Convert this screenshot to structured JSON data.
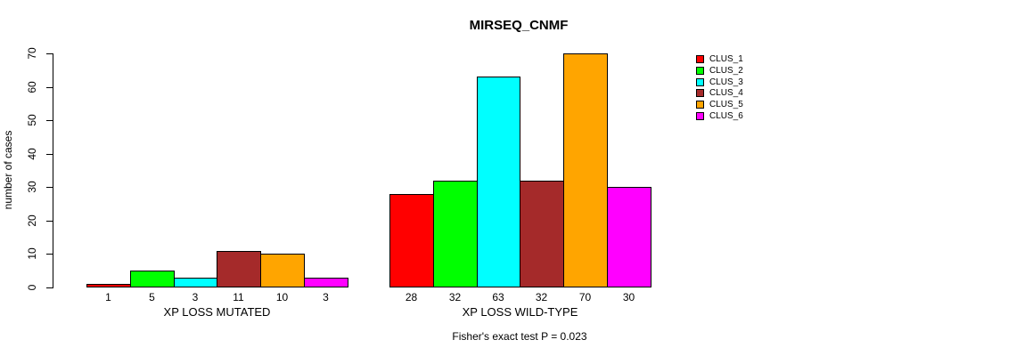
{
  "chart_data": {
    "type": "bar",
    "title": "MIRSEQ_CNMF",
    "ylabel": "number of cases",
    "ylim": [
      0,
      70
    ],
    "yticks": [
      0,
      10,
      20,
      30,
      40,
      50,
      60,
      70
    ],
    "grid": false,
    "legend_position": "right",
    "background_color": "#FFFFFF",
    "bar_border_color": "#000000",
    "series": [
      {
        "name": "CLUS_1",
        "color": "#FF0000"
      },
      {
        "name": "CLUS_2",
        "color": "#00FF00"
      },
      {
        "name": "CLUS_3",
        "color": "#00FFFF"
      },
      {
        "name": "CLUS_4",
        "color": "#A52A2A"
      },
      {
        "name": "CLUS_5",
        "color": "#FFA500"
      },
      {
        "name": "CLUS_6",
        "color": "#FF00FF"
      }
    ],
    "groups": [
      {
        "label": "XP LOSS MUTATED",
        "values": [
          1,
          5,
          3,
          11,
          10,
          3
        ]
      },
      {
        "label": "XP LOSS WILD-TYPE",
        "values": [
          28,
          32,
          63,
          32,
          70,
          30
        ]
      }
    ],
    "bar_value_labels_shown": true,
    "annotation": "Fisher's exact test P = 0.023"
  }
}
